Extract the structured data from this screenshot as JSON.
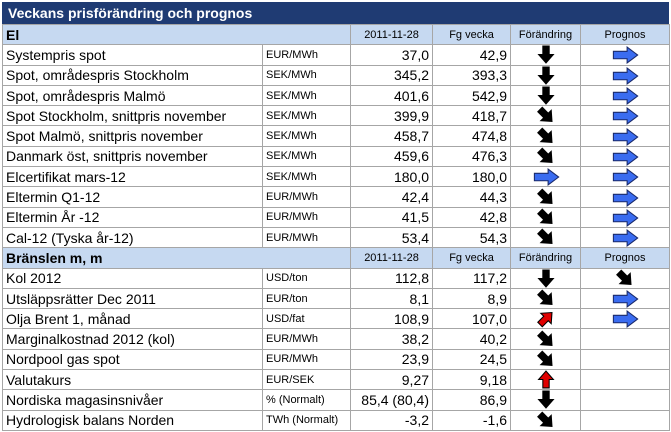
{
  "title": "Veckans prisförändring och prognos",
  "columns": [
    "2011-11-28",
    "Fg vecka",
    "Förändring",
    "Prognos"
  ],
  "sections": [
    {
      "name": "El",
      "rows": [
        {
          "label": "Systempris spot",
          "unit": "EUR/MWh",
          "current": "37,0",
          "previous": "42,9"
        },
        {
          "label": "Spot, områdespris Stockholm",
          "unit": "SEK/MWh",
          "current": "345,2",
          "previous": "393,3"
        },
        {
          "label": "Spot, områdespris Malmö",
          "unit": "SEK/MWh",
          "current": "401,6",
          "previous": "542,9"
        },
        {
          "label": "Spot Stockholm, snittpris november",
          "unit": "SEK/MWh",
          "current": "399,9",
          "previous": "418,7"
        },
        {
          "label": "Spot Malmö, snittpris november",
          "unit": "SEK/MWh",
          "current": "458,7",
          "previous": "474,8"
        },
        {
          "label": "Danmark öst, snittpris november",
          "unit": "SEK/MWh",
          "current": "459,6",
          "previous": "476,3"
        },
        {
          "label": "Elcertifikat mars-12",
          "unit": "SEK/MWh",
          "current": "180,0",
          "previous": "180,0"
        },
        {
          "label": "Eltermin Q1-12",
          "unit": "EUR/MWh",
          "current": "42,4",
          "previous": "44,3"
        },
        {
          "label": "Eltermin År -12",
          "unit": "EUR/MWh",
          "current": "41,5",
          "previous": "42,8"
        },
        {
          "label": "Cal-12 (Tyska år-12)",
          "unit": "EUR/MWh",
          "current": "53,4",
          "previous": "54,3"
        }
      ]
    },
    {
      "name": "Bränslen m, m",
      "rows": [
        {
          "label": "Kol 2012",
          "unit": "USD/ton",
          "current": "112,8",
          "previous": "117,2"
        },
        {
          "label": "Utsläppsrätter Dec 2011",
          "unit": "EUR/ton",
          "current": "8,1",
          "previous": "8,9"
        },
        {
          "label": "Olja Brent 1, månad",
          "unit": "USD/fat",
          "current": "108,9",
          "previous": "107,0"
        },
        {
          "label": "Marginalkostnad 2012 (kol)",
          "unit": "EUR/MWh",
          "current": "38,2",
          "previous": "40,2"
        },
        {
          "label": "Nordpool gas spot",
          "unit": "EUR/MWh",
          "current": "23,9",
          "previous": "24,5"
        },
        {
          "label": "Valutakurs",
          "unit": "EUR/SEK",
          "current": "9,27",
          "previous": "9,18"
        },
        {
          "label": "Nordiska magasinsnivåer",
          "unit": "% (Normalt)",
          "current": "85,4 (80,4)",
          "previous": "86,9"
        },
        {
          "label": "Hydrologisk balans Norden",
          "unit": "TWh (Normalt)",
          "current": "-3,2",
          "previous": "-1,6"
        }
      ]
    }
  ]
}
